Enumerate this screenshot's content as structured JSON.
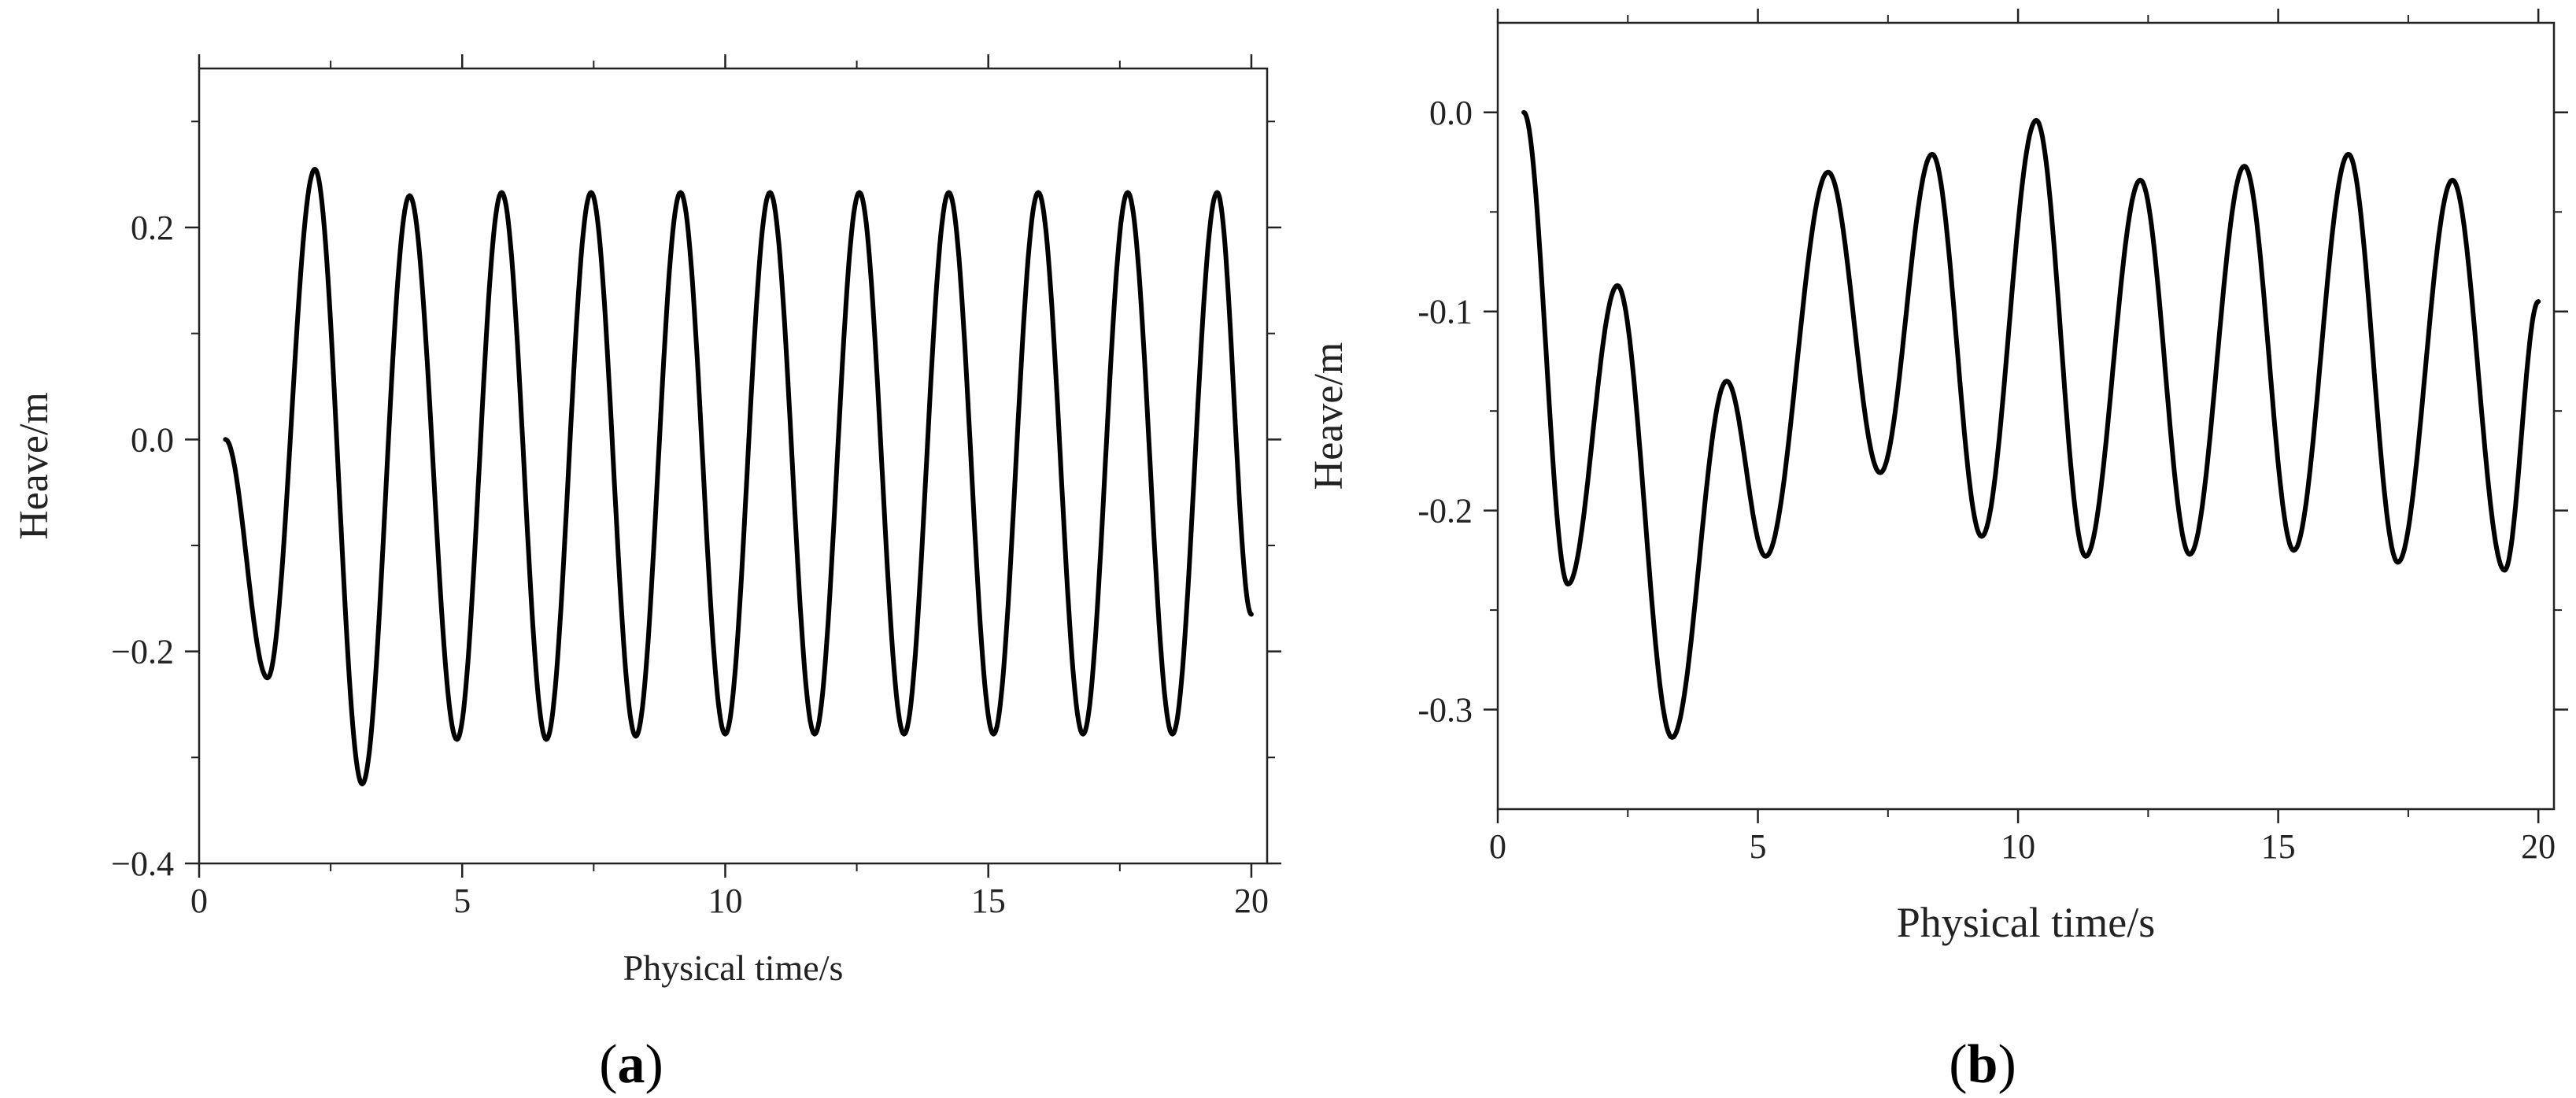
{
  "chart_data": [
    {
      "type": "line",
      "panel_label": "a",
      "title": "",
      "xlabel": "Physical time/s",
      "ylabel": "Heave/m",
      "xlim": [
        0,
        20.3
      ],
      "ylim": [
        -0.4,
        0.35
      ],
      "x_ticks": [
        0,
        5,
        10,
        15,
        20
      ],
      "x_tick_labels": [
        "0",
        "5",
        "10",
        "15",
        "20"
      ],
      "y_ticks": [
        -0.4,
        -0.2,
        0.0,
        0.2
      ],
      "y_tick_labels": [
        "−0.4",
        "−0.2",
        "0.0",
        "0.2"
      ],
      "grid": false,
      "line_color": "#000000",
      "series": [
        {
          "x": [
            0.5,
            1.3,
            2.2,
            3.1,
            4.0,
            4.9,
            5.75,
            6.6,
            7.45,
            8.3,
            9.15,
            10.0,
            10.85,
            11.7,
            12.55,
            13.4,
            14.25,
            15.1,
            15.95,
            16.8,
            17.65,
            18.5,
            19.35,
            20.0
          ],
          "y": [
            0.0,
            -0.225,
            0.255,
            -0.325,
            0.23,
            -0.283,
            0.233,
            -0.283,
            0.233,
            -0.28,
            0.233,
            -0.278,
            0.233,
            -0.278,
            0.233,
            -0.278,
            0.233,
            -0.278,
            0.233,
            -0.278,
            0.233,
            -0.278,
            0.233,
            -0.165
          ]
        }
      ]
    },
    {
      "type": "line",
      "panel_label": "b",
      "title": "",
      "xlabel": "Physical time/s",
      "ylabel": "Heave/m",
      "xlim": [
        0,
        20.3
      ],
      "ylim": [
        -0.35,
        0.045
      ],
      "x_ticks": [
        0,
        5,
        10,
        15,
        20
      ],
      "x_tick_labels": [
        "0",
        "5",
        "10",
        "15",
        "20"
      ],
      "y_ticks": [
        -0.3,
        -0.2,
        -0.1,
        0.0
      ],
      "y_tick_labels": [
        "-0.3",
        "-0.2",
        "-0.1",
        "0.0"
      ],
      "grid": false,
      "line_color": "#000000",
      "series": [
        {
          "x": [
            0.5,
            1.35,
            2.3,
            3.35,
            4.4,
            5.15,
            6.35,
            7.35,
            8.35,
            9.3,
            10.35,
            11.3,
            12.35,
            13.3,
            14.35,
            15.3,
            16.35,
            17.3,
            18.35,
            19.35,
            20.0
          ],
          "y": [
            0.0,
            -0.237,
            -0.087,
            -0.314,
            -0.135,
            -0.223,
            -0.03,
            -0.181,
            -0.021,
            -0.213,
            -0.004,
            -0.223,
            -0.034,
            -0.222,
            -0.027,
            -0.22,
            -0.021,
            -0.226,
            -0.034,
            -0.23,
            -0.095
          ]
        }
      ]
    }
  ]
}
